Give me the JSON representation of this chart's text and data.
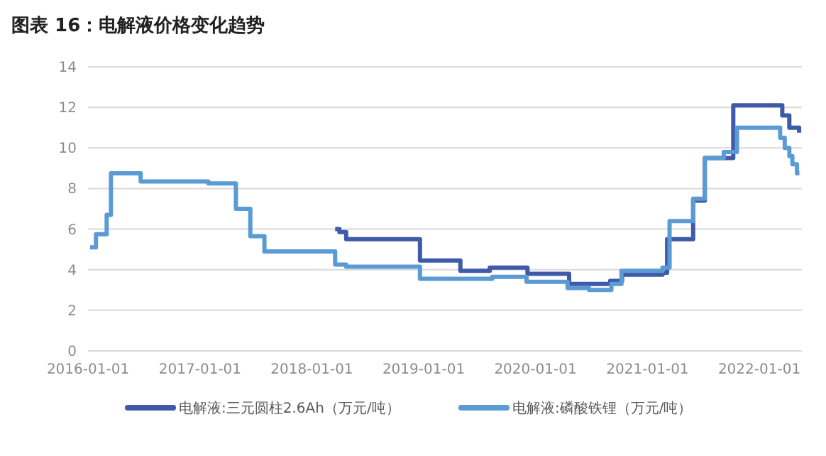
{
  "chart_data": {
    "type": "step",
    "title": "图表 16：电解液价格变化趋势",
    "xlim": [
      "2016-01-01",
      "2022-05-20"
    ],
    "xticks": [
      "2016-01-01",
      "2017-01-01",
      "2018-01-01",
      "2019-01-01",
      "2020-01-01",
      "2021-01-01",
      "2022-01-01"
    ],
    "ylim": [
      0,
      14
    ],
    "yticks": [
      0,
      2,
      4,
      6,
      8,
      10,
      12,
      14
    ],
    "grid": "y",
    "legend": "bottom",
    "line_style": "solid",
    "marker": "none",
    "series": [
      {
        "name": "电解液:三元圆柱2.6Ah（万元/吨）",
        "color": "#3f5aa8",
        "x": [
          "2018-03-18",
          "2018-04-01",
          "2018-04-23",
          "2018-12-20",
          "2019-05-01",
          "2019-08-05",
          "2019-12-06",
          "2020-04-20",
          "2020-09-01",
          "2020-10-10",
          "2021-02-19",
          "2021-03-06",
          "2021-05-30",
          "2021-07-07",
          "2021-10-08",
          "2022-03-17",
          "2022-04-09",
          "2022-05-11"
        ],
        "values": [
          6.0,
          5.85,
          5.5,
          4.45,
          3.95,
          4.1,
          3.8,
          3.3,
          3.45,
          3.75,
          3.85,
          5.5,
          7.4,
          9.5,
          12.1,
          11.6,
          11.0,
          10.75
        ]
      },
      {
        "name": "电解液:磷酸铁锂（万元/吨）",
        "color": "#5b9bd5",
        "x": [
          "2016-01-08",
          "2016-01-27",
          "2016-03-02",
          "2016-03-16",
          "2016-06-21",
          "2017-01-28",
          "2017-04-28",
          "2017-06-14",
          "2017-07-30",
          "2018-03-18",
          "2018-04-23",
          "2018-12-20",
          "2019-08-13",
          "2019-12-03",
          "2020-04-15",
          "2020-06-24",
          "2020-09-05",
          "2020-10-08",
          "2021-02-19",
          "2021-03-14",
          "2021-05-30",
          "2021-07-07",
          "2021-09-07",
          "2021-10-20",
          "2022-03-10",
          "2022-03-25",
          "2022-04-09",
          "2022-04-19",
          "2022-05-04",
          "2022-05-12"
        ],
        "values": [
          5.1,
          5.75,
          6.7,
          8.75,
          8.35,
          8.25,
          7.0,
          5.65,
          4.9,
          4.25,
          4.15,
          3.55,
          3.65,
          3.4,
          3.1,
          3.0,
          3.3,
          3.95,
          4.1,
          6.4,
          7.5,
          9.5,
          9.8,
          11.0,
          10.5,
          10.0,
          9.6,
          9.2,
          8.75,
          8.75
        ]
      }
    ]
  }
}
